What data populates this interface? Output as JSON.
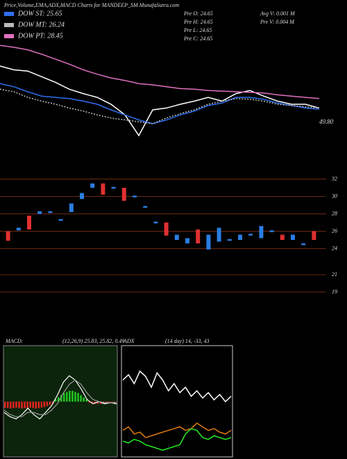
{
  "chart_data": [
    {
      "type": "line",
      "title": "Price,Volume,EMA,ADX,MACD Charts for MANDEEP_SM MunafaSutra.com",
      "annotation": "49.80",
      "info": [
        "Pre  O: 24.65",
        "Pre  H: 24.65",
        "Pre  L: 24.65",
        "Pre  C: 24.65",
        "Avg V: 0.001 M",
        "Pre  V: 0.004  M"
      ],
      "ylim": [
        20,
        40
      ],
      "series": [
        {
          "color": "#ffffff",
          "values": [
            35.0,
            34.4,
            34.2,
            33.3,
            32.4,
            31.3,
            30.6,
            30.0,
            28.9,
            27.2,
            23.9,
            28.0,
            28.3,
            28.9,
            29.4,
            30.0,
            29.4,
            30.6,
            31.1,
            30.2,
            29.4,
            28.9,
            28.9,
            28.3
          ]
        },
        {
          "name": "DOW ST: 25.65",
          "color": "#2f6ff0",
          "values": [
            32.2,
            31.7,
            30.9,
            30.2,
            30.0,
            29.8,
            29.4,
            28.9,
            28.0,
            27.2,
            26.4,
            25.8,
            26.4,
            27.2,
            27.8,
            28.7,
            29.1,
            30.0,
            30.0,
            29.7,
            29.1,
            28.7,
            28.3,
            28.1
          ]
        },
        {
          "name": "DOW MT: 26.24",
          "color": "#bbbbbb",
          "values": [
            31.3,
            30.9,
            30.0,
            29.4,
            28.9,
            28.3,
            27.8,
            27.2,
            26.7,
            26.4,
            26.1,
            25.8,
            26.7,
            27.4,
            28.0,
            28.9,
            29.4,
            29.8,
            29.7,
            29.4,
            28.9,
            28.7,
            28.5,
            28.3
          ]
        },
        {
          "name": "DOW PT: 28.45",
          "color": "#e070c0",
          "values": [
            38.3,
            38.0,
            37.6,
            36.9,
            36.1,
            35.3,
            34.4,
            33.7,
            33.1,
            32.7,
            32.2,
            32.0,
            31.7,
            31.4,
            31.3,
            31.1,
            31.0,
            30.9,
            30.8,
            30.7,
            30.4,
            30.2,
            30.0,
            29.8
          ]
        }
      ]
    },
    {
      "type": "candlestick",
      "ylim": [
        17,
        33
      ],
      "yticks": [
        32,
        30,
        28,
        26,
        24,
        21,
        19
      ],
      "grid": true,
      "up_color": "#2a7de1",
      "down_color": "#e03030",
      "grid_color": "#6a2a10",
      "open": [
        26.0,
        26.1,
        27.8,
        28.0,
        28.1,
        27.2,
        28.2,
        29.7,
        31.0,
        31.5,
        30.9,
        31.0,
        29.9,
        28.7,
        26.9,
        27.0,
        25.0,
        24.6,
        26.2,
        23.9,
        24.8,
        24.9,
        25.0,
        25.5,
        25.2,
        25.9,
        25.6,
        25.0,
        24.4,
        26.0
      ],
      "close": [
        24.9,
        26.4,
        26.2,
        28.3,
        28.3,
        27.4,
        29.2,
        30.4,
        31.5,
        30.2,
        31.1,
        29.5,
        30.1,
        28.9,
        27.1,
        25.5,
        25.6,
        25.2,
        24.6,
        25.6,
        26.4,
        25.1,
        25.6,
        25.7,
        26.6,
        26.1,
        25.0,
        25.6,
        24.6,
        25.0
      ]
    },
    {
      "type": "macd",
      "title": "MACD:",
      "subtitle": "(12,26,9) 25.83, 25.82, 0.49",
      "ylim": [
        -2.5,
        2.5
      ],
      "pos_color": "#22cc22",
      "neg_color": "#ee2222",
      "histogram": [
        -0.3,
        -0.3,
        -0.32,
        -0.3,
        -0.28,
        -0.3,
        -0.32,
        -0.3,
        -0.3,
        -0.28,
        -0.3,
        -0.32,
        -0.3,
        -0.28,
        -0.25,
        -0.2,
        -0.15,
        -0.1,
        0.1,
        0.2,
        0.3,
        0.4,
        0.45,
        0.5,
        0.5,
        0.45,
        0.4,
        0.3,
        0.2,
        0.1,
        -0.05,
        -0.1,
        -0.1,
        -0.1,
        -0.1,
        -0.1,
        -0.05,
        -0.05,
        -0.05,
        -0.05
      ],
      "series": [
        {
          "color": "#ffffff",
          "values": [
            -0.5,
            -0.7,
            -0.8,
            -0.6,
            -0.3,
            -0.6,
            -0.8,
            -0.5,
            -0.2,
            0.3,
            0.9,
            1.2,
            1.0,
            0.6,
            0.1,
            -0.1,
            0.0,
            -0.1,
            -0.05,
            -0.1
          ]
        },
        {
          "color": "#999999",
          "values": [
            -0.4,
            -0.6,
            -0.7,
            -0.7,
            -0.5,
            -0.5,
            -0.6,
            -0.6,
            -0.4,
            -0.1,
            0.4,
            0.8,
            1.0,
            0.8,
            0.4,
            0.1,
            0.0,
            -0.05,
            -0.05,
            -0.05
          ]
        }
      ]
    },
    {
      "type": "adx",
      "title": "ADX",
      "subtitle": "(14 day) 14, -33, 43",
      "ylim": [
        0,
        60
      ],
      "series": [
        {
          "color": "#ffffff",
          "values": [
            42,
            45,
            40,
            47,
            44,
            38,
            46,
            42,
            36,
            40,
            35,
            38,
            33,
            36,
            32,
            35,
            31,
            34,
            30,
            33
          ]
        },
        {
          "color": "#e07a10",
          "values": [
            14,
            16,
            12,
            13,
            10,
            11,
            12,
            13,
            14,
            15,
            16,
            14,
            15,
            18,
            16,
            14,
            15,
            13,
            12,
            14
          ]
        },
        {
          "color": "#22ee22",
          "values": [
            8,
            7,
            9,
            8,
            6,
            5,
            4,
            3,
            4,
            5,
            6,
            12,
            15,
            14,
            10,
            9,
            11,
            10,
            9,
            10
          ]
        }
      ]
    }
  ]
}
